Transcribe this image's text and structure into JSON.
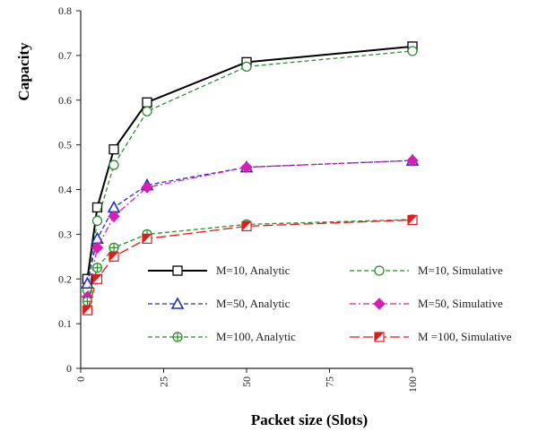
{
  "chart_data": {
    "type": "line",
    "title": "",
    "xlabel": "Packet size (Slots)",
    "ylabel": "Capacity",
    "xlim": [
      0,
      100
    ],
    "ylim": [
      0,
      0.8
    ],
    "xticks": [
      0,
      25,
      50,
      75,
      100
    ],
    "yticks": [
      0,
      0.1,
      0.2,
      0.3,
      0.4,
      0.5,
      0.6,
      0.7,
      0.8
    ],
    "xtick_labels": [
      "0",
      "25",
      "50",
      "75",
      "100"
    ],
    "ytick_labels": [
      "0",
      "0.1",
      "0.2",
      "0.3",
      "0.4",
      "0.5",
      "0.6",
      "0.7",
      "0.8"
    ],
    "grid": false,
    "legend_position": "bottom-right",
    "series": [
      {
        "name": "M=10, Analytic",
        "color": "#000000",
        "dash": "solid",
        "marker": "square-open",
        "x": [
          2,
          5,
          10,
          20,
          50,
          100
        ],
        "y": [
          0.2,
          0.36,
          0.49,
          0.595,
          0.685,
          0.72
        ]
      },
      {
        "name": "M=10, Simulative",
        "color": "#2e8b2e",
        "dash": "dashed",
        "marker": "circle-open",
        "x": [
          2,
          5,
          10,
          20,
          50,
          100
        ],
        "y": [
          0.175,
          0.33,
          0.455,
          0.575,
          0.675,
          0.71
        ]
      },
      {
        "name": "M=50, Analytic",
        "color": "#1f2fbf",
        "dash": "dashed",
        "marker": "triangle-open",
        "x": [
          2,
          5,
          10,
          20,
          50,
          100
        ],
        "y": [
          0.19,
          0.29,
          0.36,
          0.41,
          0.45,
          0.465
        ]
      },
      {
        "name": "M=50, Simulative",
        "color": "#d61fb4",
        "dash": "dashdot",
        "marker": "diamond-filled",
        "x": [
          2,
          5,
          10,
          20,
          50,
          100
        ],
        "y": [
          0.16,
          0.27,
          0.34,
          0.405,
          0.45,
          0.465
        ]
      },
      {
        "name": "M=100, Analytic",
        "color": "#2e8b2e",
        "dash": "dashed",
        "marker": "circle-plus",
        "x": [
          2,
          5,
          10,
          20,
          50,
          100
        ],
        "y": [
          0.15,
          0.225,
          0.27,
          0.3,
          0.322,
          0.333
        ]
      },
      {
        "name": "M =100, Simulative",
        "color": "#e21a1a",
        "dash": "longdash",
        "marker": "square-half",
        "x": [
          2,
          5,
          10,
          20,
          50,
          100
        ],
        "y": [
          0.13,
          0.2,
          0.25,
          0.29,
          0.318,
          0.332
        ]
      }
    ]
  }
}
